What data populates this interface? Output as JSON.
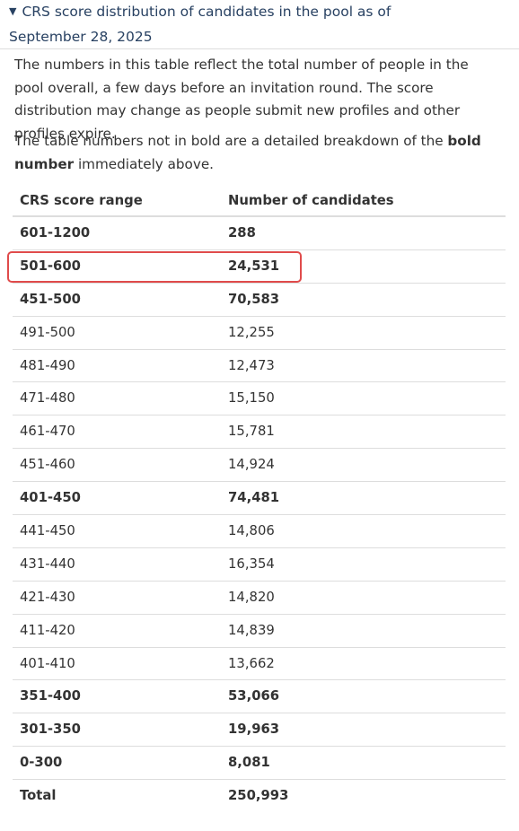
{
  "details": {
    "summary": "CRS score distribution of candidates in the pool as of September 28, 2025",
    "toggle_icon": "triangle-down-icon"
  },
  "intro": {
    "paragraph1": "The numbers in this table reflect the total number of people in the pool overall, a few days before an invitation round. The score distribution may change as people submit new profiles and other profiles expire.",
    "paragraph2_before": "The table numbers not in bold are a detailed breakdown of the ",
    "paragraph2_bold": "bold number",
    "paragraph2_after": " immediately above."
  },
  "table": {
    "headers": [
      "CRS score range",
      "Number of candidates"
    ],
    "rows": [
      {
        "range": "601-1200",
        "count": "288",
        "bold": true
      },
      {
        "range": "501-600",
        "count": "24,531",
        "bold": true,
        "highlighted": true
      },
      {
        "range": "451-500",
        "count": "70,583",
        "bold": true
      },
      {
        "range": "491-500",
        "count": "12,255",
        "bold": false
      },
      {
        "range": "481-490",
        "count": "12,473",
        "bold": false
      },
      {
        "range": "471-480",
        "count": "15,150",
        "bold": false
      },
      {
        "range": "461-470",
        "count": "15,781",
        "bold": false
      },
      {
        "range": "451-460",
        "count": "14,924",
        "bold": false
      },
      {
        "range": "401-450",
        "count": "74,481",
        "bold": true
      },
      {
        "range": "441-450",
        "count": "14,806",
        "bold": false
      },
      {
        "range": "431-440",
        "count": "16,354",
        "bold": false
      },
      {
        "range": "421-430",
        "count": "14,820",
        "bold": false
      },
      {
        "range": "411-420",
        "count": "14,839",
        "bold": false
      },
      {
        "range": "401-410",
        "count": "13,662",
        "bold": false
      },
      {
        "range": "351-400",
        "count": "53,066",
        "bold": true
      },
      {
        "range": "301-350",
        "count": "19,963",
        "bold": true
      },
      {
        "range": "0-300",
        "count": "8,081",
        "bold": true
      },
      {
        "range": "Total",
        "count": "250,993",
        "bold": true
      }
    ]
  },
  "colors": {
    "link": "#284162",
    "text": "#333333",
    "rule": "#dddddd",
    "highlight_border": "#e04b4b"
  }
}
